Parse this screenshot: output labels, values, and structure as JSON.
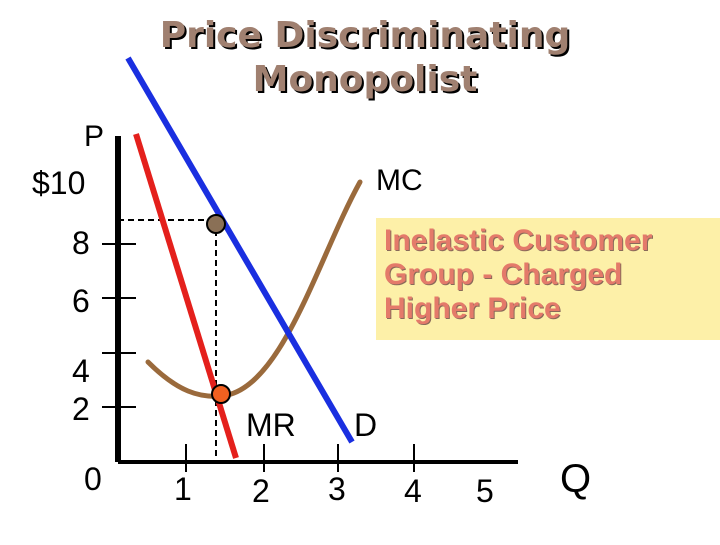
{
  "title": {
    "line1": "Price Discriminating",
    "line2": "Monopolist"
  },
  "callout": {
    "line1": "Inelastic Customer",
    "line2": "Group - Charged",
    "line3": "Higher Price"
  },
  "axes": {
    "y_label": "P",
    "x_label": "Q",
    "y_ticks": [
      "$10",
      "8",
      "6",
      "4",
      "2",
      "0"
    ],
    "x_ticks": [
      "1",
      "2",
      "3",
      "4",
      "5"
    ]
  },
  "curves": {
    "mc_label": "MC",
    "mr_label": "MR",
    "d_label": "D"
  },
  "colors": {
    "demand": "#1a2fe0",
    "mr": "#e4201c",
    "mc": "#9a6a3c",
    "price_point": "#8a7056",
    "mr_point": "#f06020",
    "callout_bg": "#fdf0a8"
  }
}
